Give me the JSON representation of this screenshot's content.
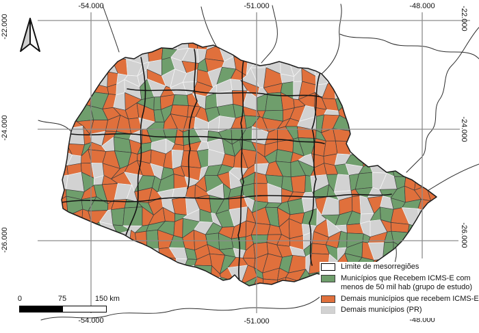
{
  "graticule": {
    "x_labels": [
      "-54.000",
      "-51.000",
      "-48.000"
    ],
    "y_labels": [
      "-22.000",
      "-24.000",
      "-26.000"
    ]
  },
  "scalebar": {
    "tick0": "0",
    "tick75": "75",
    "tick150": "150 km"
  },
  "legend": {
    "items": [
      {
        "label": "Limite de mesorregiões",
        "fill": "#ffffff",
        "border": "#000000"
      },
      {
        "label": "Municípios que Recebem ICMS-E com menos de 50 mil hab (grupo de estudo)",
        "fill": "#6f9e6c",
        "border": "#3c3c3c"
      },
      {
        "label": "Demais municípios que recebem ICMS-E",
        "fill": "#e0703c",
        "border": "#3c3c3c"
      },
      {
        "label": "Demais municípios (PR)",
        "fill": "#d2d2d2",
        "border": "#c6c6c6"
      }
    ]
  },
  "map": {
    "colors": {
      "study_green": "#6f9e6c",
      "receive_orange": "#e0703c",
      "other_gray": "#d2d2d2",
      "state_border": "#1c1c1c",
      "mesoregion_border": "#141414",
      "municipality_border_dark": "#3c3c3c",
      "municipality_border_light": "#f4f4f4",
      "neighbor_line": "#2a2a2a",
      "grid_line": "#8c8c8c"
    },
    "categories": [
      {
        "name": "mesoregion-limit",
        "color": "#ffffff"
      },
      {
        "name": "icmse-under-50k-study-group",
        "color": "#6f9e6c"
      },
      {
        "name": "other-icmse-receivers",
        "color": "#e0703c"
      },
      {
        "name": "other-pr-municipalities",
        "color": "#d2d2d2"
      }
    ]
  }
}
